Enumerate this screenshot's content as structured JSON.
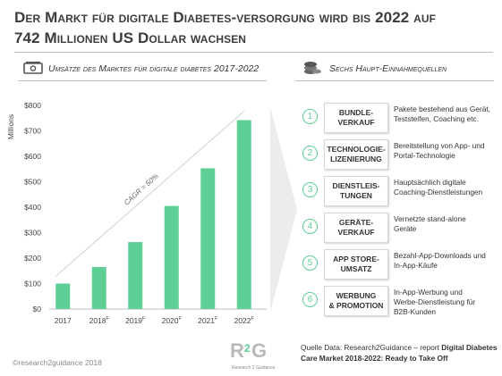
{
  "title_line1": "Der Markt für digitale Diabetes-versorgung wird bis 2022 auf",
  "title_line2": "742 Millionen US Dollar wachsen",
  "left_section": {
    "heading": "Umsätze des Marktes für digitale diabetes 2017-2022",
    "icon": "money-bill-icon"
  },
  "right_section": {
    "heading": "Sechs Haupt-Einnahmequellen",
    "icon": "coins-stack-icon"
  },
  "chart_data": {
    "type": "bar",
    "categories": [
      "2017",
      "2018",
      "2019",
      "2020",
      "2021",
      "2022"
    ],
    "category_superscripts": [
      "",
      "F",
      "F",
      "F",
      "F",
      "F"
    ],
    "values": [
      100,
      165,
      263,
      405,
      553,
      742
    ],
    "ylabel": "Millions",
    "ylim": [
      0,
      800
    ],
    "yticks": [
      0,
      100,
      200,
      300,
      400,
      500,
      600,
      700,
      800
    ],
    "ytick_labels": [
      "$0",
      "$100",
      "$200",
      "$300",
      "$400",
      "$500",
      "$600",
      "$700",
      "$800"
    ],
    "annotation": "CAGR = 50%",
    "bar_color": "#5fcf96",
    "grid": false
  },
  "revenue_streams": [
    {
      "num": "1",
      "label": "BUNDLE-\nVERKAUF",
      "desc": "Pakete bestehend aus Gerät,\nTeststeifen, Coaching etc."
    },
    {
      "num": "2",
      "label": "TECHNOLOGIE-\nLIZENIERUNG",
      "desc": "Bereitstellung von App- und\nPortal-Technologie"
    },
    {
      "num": "3",
      "label": "DIENSTLEIS-\nTUNGEN",
      "desc": "Hauptsächlich digitale\nCoaching-Dienstleistungen"
    },
    {
      "num": "4",
      "label": "GERÄTE-\nVERKAUF",
      "desc": "Vernetzte stand-alone\nGeräte"
    },
    {
      "num": "5",
      "label": "APP STORE-\nUMSATZ",
      "desc": "Bezahl-App-Downloads und\nIn-App-Käufe"
    },
    {
      "num": "6",
      "label": "WERBUNG\n& PROMOTION",
      "desc": "In-App-Werbung  und\nWerbe-Dienstleistung für\nB2B-Kunden"
    }
  ],
  "source": {
    "prefix": "Quelle Data: Research2Guidance – report",
    "report": "Digital Diabetes Care Market 2018-2022: Ready to Take Off"
  },
  "logo": {
    "mark": "R2G",
    "tagline": "Research 2 Guidance"
  },
  "copyright": "©research2guidance 2018",
  "colors": {
    "accent_green": "#5fcf96",
    "arrow_gray": "#ebebeb",
    "text": "#3a3a3a"
  }
}
